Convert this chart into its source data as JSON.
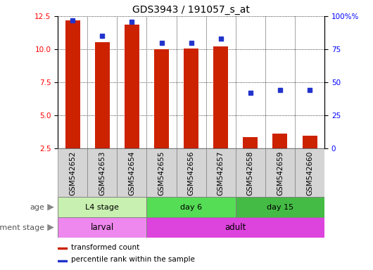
{
  "title": "GDS3943 / 191057_s_at",
  "samples": [
    "GSM542652",
    "GSM542653",
    "GSM542654",
    "GSM542655",
    "GSM542656",
    "GSM542657",
    "GSM542658",
    "GSM542659",
    "GSM542660"
  ],
  "transformed_count": [
    12.2,
    10.55,
    11.85,
    10.0,
    10.05,
    10.2,
    3.35,
    3.65,
    3.45
  ],
  "percentile_rank": [
    97,
    85,
    96,
    80,
    80,
    83,
    42,
    44,
    44
  ],
  "ylim_left": [
    2.5,
    12.5
  ],
  "ylim_right": [
    0,
    100
  ],
  "yticks_left": [
    2.5,
    5.0,
    7.5,
    10.0,
    12.5
  ],
  "yticks_right": [
    0,
    25,
    50,
    75,
    100
  ],
  "age_groups": [
    {
      "label": "L4 stage",
      "start": 0,
      "end": 3,
      "color": "#c8f0b0"
    },
    {
      "label": "day 6",
      "start": 3,
      "end": 6,
      "color": "#55dd55"
    },
    {
      "label": "day 15",
      "start": 6,
      "end": 9,
      "color": "#44bb44"
    }
  ],
  "dev_groups": [
    {
      "label": "larval",
      "start": 0,
      "end": 3,
      "color": "#ee88ee"
    },
    {
      "label": "adult",
      "start": 3,
      "end": 9,
      "color": "#dd44dd"
    }
  ],
  "bar_color": "#cc2200",
  "dot_color": "#2233cc",
  "bar_width": 0.5,
  "background_color": "#ffffff",
  "title_fontsize": 10,
  "tick_fontsize": 7.5,
  "label_fontsize": 8
}
